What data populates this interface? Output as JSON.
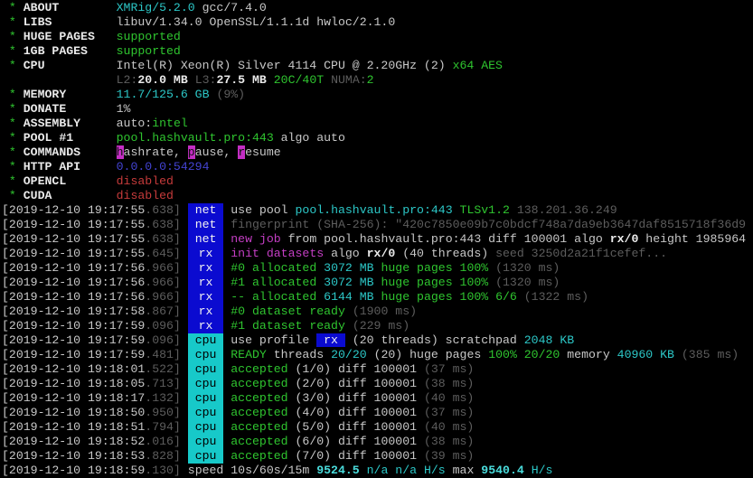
{
  "palette": {
    "bg": "#000000",
    "fg": "#c8c8c8",
    "fg_bright": "#eaeaea",
    "green": "#2fc52f",
    "cyan": "#2cc7c7",
    "cyan_bright": "#4adcdc",
    "magenta": "#c43ec4",
    "red": "#c73b3b",
    "gray": "#5d5d5d",
    "blue": "#4343d2",
    "badge_blue_bg": "#0b0bd0",
    "badge_blue_fg": "#f2f2f2",
    "badge_cyan_bg": "#17c9c9",
    "badge_cyan_fg": "#000000",
    "hl_bg": "#c32ec3",
    "hl_fg": "#111111"
  },
  "info_lines": [
    {
      "label": "ABOUT",
      "spans": [
        [
          "XMRig/5.2.0",
          "c"
        ],
        [
          " gcc/7.4.0",
          "w"
        ]
      ]
    },
    {
      "label": "LIBS",
      "spans": [
        [
          "libuv/1.34.0 OpenSSL/1.1.1d hwloc/2.1.0",
          "w"
        ]
      ]
    },
    {
      "label": "HUGE PAGES",
      "spans": [
        [
          "supported",
          "g"
        ]
      ]
    },
    {
      "label": "1GB PAGES",
      "spans": [
        [
          "supported",
          "g"
        ]
      ]
    },
    {
      "label": "CPU",
      "spans": [
        [
          "Intel(R) Xeon(R) Silver 4114 CPU @ 2.20GHz (2) ",
          "w"
        ],
        [
          "x64 AES",
          "g"
        ]
      ]
    },
    {
      "cont": true,
      "spans": [
        [
          "L2:",
          "d"
        ],
        [
          "20.0 MB",
          "b"
        ],
        [
          " ",
          "w"
        ],
        [
          "L3:",
          "d"
        ],
        [
          "27.5 MB",
          "b"
        ],
        [
          " ",
          "w"
        ],
        [
          "20C/40T",
          "g"
        ],
        [
          " ",
          "w"
        ],
        [
          "NUMA:",
          "d"
        ],
        [
          "2",
          "g"
        ]
      ]
    },
    {
      "label": "MEMORY",
      "spans": [
        [
          "11.7/125.6 GB",
          "c"
        ],
        [
          " ",
          "w"
        ],
        [
          "(9%)",
          "d"
        ]
      ]
    },
    {
      "label": "DONATE",
      "spans": [
        [
          "1%",
          "w"
        ]
      ]
    },
    {
      "label": "ASSEMBLY",
      "spans": [
        [
          "auto:",
          "w"
        ],
        [
          "intel",
          "g"
        ]
      ]
    },
    {
      "label": "POOL #1",
      "spans": [
        [
          "pool.hashvault.pro:443",
          "g"
        ],
        [
          " algo auto",
          "w"
        ]
      ]
    },
    {
      "label": "COMMANDS",
      "spans": [
        [
          "h",
          "h"
        ],
        [
          "ashrate, ",
          "w"
        ],
        [
          "p",
          "h"
        ],
        [
          "ause, ",
          "w"
        ],
        [
          "r",
          "h"
        ],
        [
          "esume",
          "w"
        ]
      ]
    },
    {
      "label": "HTTP API",
      "spans": [
        [
          "0.0.0.0:54294",
          "u"
        ]
      ]
    },
    {
      "label": "OPENCL",
      "spans": [
        [
          "disabled",
          "r"
        ]
      ]
    },
    {
      "label": "CUDA",
      "spans": [
        [
          "disabled",
          "r"
        ]
      ]
    }
  ],
  "log_lines": [
    {
      "ts": "[2019-12-10 19:17:55",
      "ms": ".638]",
      "tag": "net",
      "tagc": "blue",
      "spans": [
        [
          "use pool ",
          "w"
        ],
        [
          "pool.hashvault.pro:443",
          "c"
        ],
        [
          " ",
          "w"
        ],
        [
          "TLSv1.2",
          "g"
        ],
        [
          " ",
          "w"
        ],
        [
          "138.201.36.249",
          "d"
        ]
      ]
    },
    {
      "ts": "[2019-12-10 19:17:55",
      "ms": ".638]",
      "tag": "net",
      "tagc": "blue",
      "spans": [
        [
          "fingerprint (SHA-256): \"420c7850e09b7c0bdcf748a7da9eb3647daf8515718f36d9",
          "d"
        ]
      ]
    },
    {
      "ts": "[2019-12-10 19:17:55",
      "ms": ".638]",
      "tag": "net",
      "tagc": "blue",
      "spans": [
        [
          "new job",
          "m"
        ],
        [
          " from pool.hashvault.pro:443 diff 100001 algo ",
          "w"
        ],
        [
          "rx/0",
          "b"
        ],
        [
          " height 1985964",
          "w"
        ]
      ]
    },
    {
      "ts": "[2019-12-10 19:17:55",
      "ms": ".645]",
      "tag": "rx",
      "tagc": "blue",
      "spans": [
        [
          "init datasets",
          "m"
        ],
        [
          " algo ",
          "w"
        ],
        [
          "rx/0",
          "b"
        ],
        [
          " (40 threads) ",
          "w"
        ],
        [
          "seed 3250d2a21f1cefef...",
          "d"
        ]
      ]
    },
    {
      "ts": "[2019-12-10 19:17:56",
      "ms": ".966]",
      "tag": "rx",
      "tagc": "blue",
      "spans": [
        [
          "#0 allocated ",
          "g"
        ],
        [
          "3072 MB",
          "c"
        ],
        [
          " huge pages 100% ",
          "g"
        ],
        [
          "(1320 ms)",
          "d"
        ]
      ]
    },
    {
      "ts": "[2019-12-10 19:17:56",
      "ms": ".966]",
      "tag": "rx",
      "tagc": "blue",
      "spans": [
        [
          "#1 allocated ",
          "g"
        ],
        [
          "3072 MB",
          "c"
        ],
        [
          " huge pages 100% ",
          "g"
        ],
        [
          "(1320 ms)",
          "d"
        ]
      ]
    },
    {
      "ts": "[2019-12-10 19:17:56",
      "ms": ".966]",
      "tag": "rx",
      "tagc": "blue",
      "spans": [
        [
          "-- allocated ",
          "g"
        ],
        [
          "6144 MB",
          "c"
        ],
        [
          " huge pages 100% 6/6 ",
          "g"
        ],
        [
          "(1322 ms)",
          "d"
        ]
      ]
    },
    {
      "ts": "[2019-12-10 19:17:58",
      "ms": ".867]",
      "tag": "rx",
      "tagc": "blue",
      "spans": [
        [
          "#0 dataset ready ",
          "g"
        ],
        [
          "(1900 ms)",
          "d"
        ]
      ]
    },
    {
      "ts": "[2019-12-10 19:17:59",
      "ms": ".096]",
      "tag": "rx",
      "tagc": "blue",
      "spans": [
        [
          "#1 dataset ready ",
          "g"
        ],
        [
          "(229 ms)",
          "d"
        ]
      ]
    },
    {
      "ts": "[2019-12-10 19:17:59",
      "ms": ".096]",
      "tag": "cpu",
      "tagc": "cyan",
      "spans": [
        [
          "use profile ",
          "w"
        ],
        [
          " rx ",
          "K"
        ],
        [
          " (20 threads) scratchpad ",
          "w"
        ],
        [
          "2048 KB",
          "c"
        ]
      ]
    },
    {
      "ts": "[2019-12-10 19:17:59",
      "ms": ".481]",
      "tag": "cpu",
      "tagc": "cyan",
      "spans": [
        [
          "READY",
          "g"
        ],
        [
          " threads ",
          "w"
        ],
        [
          "20/20",
          "c"
        ],
        [
          " (20) huge pages ",
          "w"
        ],
        [
          "100% 20/20",
          "g"
        ],
        [
          " memory ",
          "w"
        ],
        [
          "40960 KB",
          "c"
        ],
        [
          " ",
          "w"
        ],
        [
          "(385 ms)",
          "d"
        ]
      ]
    },
    {
      "ts": "[2019-12-10 19:18:01",
      "ms": ".522]",
      "tag": "cpu",
      "tagc": "cyan",
      "spans": [
        [
          "accepted",
          "g"
        ],
        [
          " (1/0) diff 100001 ",
          "w"
        ],
        [
          "(37 ms)",
          "d"
        ]
      ]
    },
    {
      "ts": "[2019-12-10 19:18:05",
      "ms": ".713]",
      "tag": "cpu",
      "tagc": "cyan",
      "spans": [
        [
          "accepted",
          "g"
        ],
        [
          " (2/0) diff 100001 ",
          "w"
        ],
        [
          "(38 ms)",
          "d"
        ]
      ]
    },
    {
      "ts": "[2019-12-10 19:18:17",
      "ms": ".132]",
      "tag": "cpu",
      "tagc": "cyan",
      "spans": [
        [
          "accepted",
          "g"
        ],
        [
          " (3/0) diff 100001 ",
          "w"
        ],
        [
          "(40 ms)",
          "d"
        ]
      ]
    },
    {
      "ts": "[2019-12-10 19:18:50",
      "ms": ".950]",
      "tag": "cpu",
      "tagc": "cyan",
      "spans": [
        [
          "accepted",
          "g"
        ],
        [
          " (4/0) diff 100001 ",
          "w"
        ],
        [
          "(37 ms)",
          "d"
        ]
      ]
    },
    {
      "ts": "[2019-12-10 19:18:51",
      "ms": ".794]",
      "tag": "cpu",
      "tagc": "cyan",
      "spans": [
        [
          "accepted",
          "g"
        ],
        [
          " (5/0) diff 100001 ",
          "w"
        ],
        [
          "(40 ms)",
          "d"
        ]
      ]
    },
    {
      "ts": "[2019-12-10 19:18:52",
      "ms": ".016]",
      "tag": "cpu",
      "tagc": "cyan",
      "spans": [
        [
          "accepted",
          "g"
        ],
        [
          " (6/0) diff 100001 ",
          "w"
        ],
        [
          "(38 ms)",
          "d"
        ]
      ]
    },
    {
      "ts": "[2019-12-10 19:18:53",
      "ms": ".828]",
      "tag": "cpu",
      "tagc": "cyan",
      "spans": [
        [
          "accepted",
          "g"
        ],
        [
          " (7/0) diff 100001 ",
          "w"
        ],
        [
          "(39 ms)",
          "d"
        ]
      ]
    },
    {
      "ts": "[2019-12-10 19:18:59",
      "ms": ".130]",
      "tag": null,
      "tagc": null,
      "spans": [
        [
          "speed 10s/60s/15m ",
          "w"
        ],
        [
          "9524.5",
          "C"
        ],
        [
          " ",
          "w"
        ],
        [
          "n/a n/a",
          "c"
        ],
        [
          " ",
          "w"
        ],
        [
          "H/s",
          "c"
        ],
        [
          " max ",
          "w"
        ],
        [
          "9540.4",
          "C"
        ],
        [
          " ",
          "w"
        ],
        [
          "H/s",
          "c"
        ]
      ]
    }
  ]
}
